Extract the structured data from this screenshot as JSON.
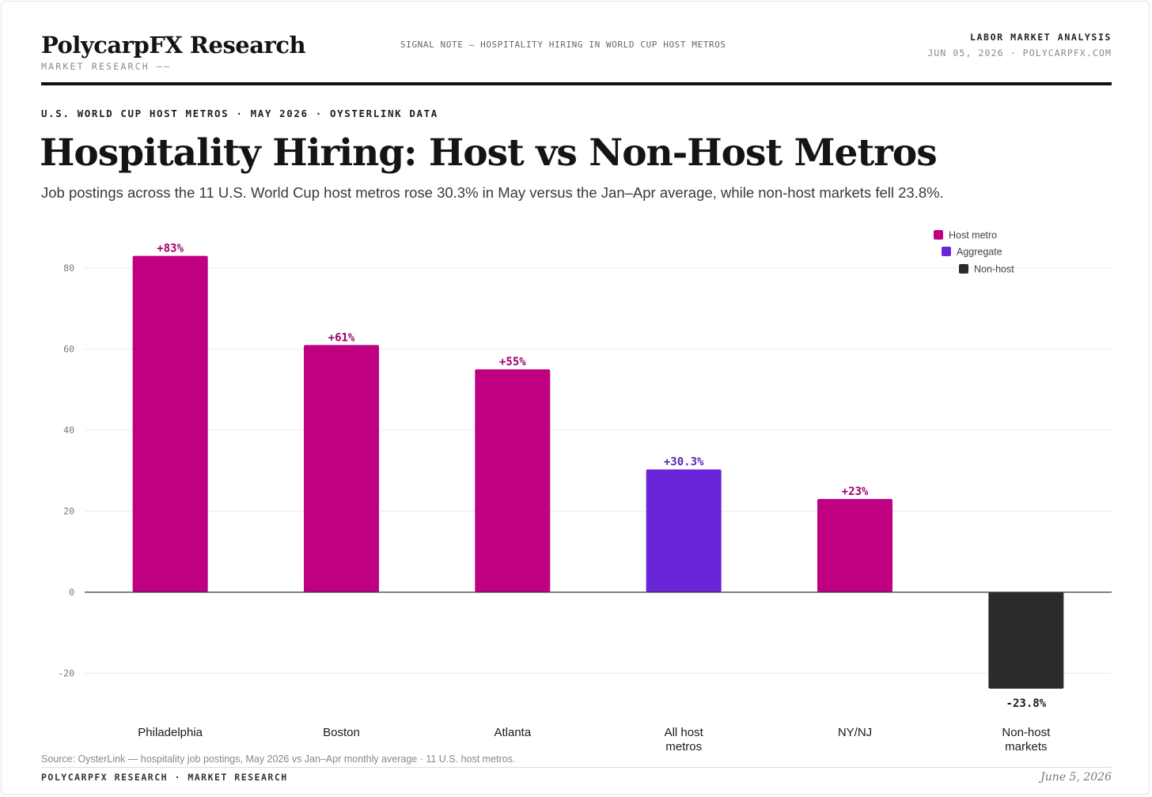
{
  "header": {
    "brand": "PolycarpFX Research",
    "brand_sub": "MARKET RESEARCH ——",
    "signal_note": "SIGNAL NOTE — HOSPITALITY HIRING IN WORLD CUP HOST METROS",
    "section": "LABOR MARKET ANALYSIS",
    "date_site": "JUN 05, 2026 · POLYCARPFX.COM"
  },
  "eyebrow": "U.S. WORLD CUP HOST METROS · MAY 2026 · OYSTERLINK DATA",
  "title": "Hospitality Hiring: Host vs Non-Host Metros",
  "subtitle": "Job postings across the 11 U.S. World Cup host metros rose 30.3% in May versus the Jan–Apr average, while non-host markets fell 23.8%.",
  "colors": {
    "host": "#bf0081",
    "aggregate": "#6a25d8",
    "nonhost": "#2b2b2b",
    "host_label": "#a0006c",
    "aggregate_label": "#5a22b5",
    "nonhost_label": "#1a1a1a"
  },
  "chart_data": {
    "type": "bar",
    "categories": [
      [
        "Philadelphia"
      ],
      [
        "Boston"
      ],
      [
        "Atlanta"
      ],
      [
        "All host",
        "metros"
      ],
      [
        "NY/NJ"
      ],
      [
        "Non-host",
        "markets"
      ]
    ],
    "values": [
      83,
      61,
      55,
      30.3,
      23,
      -23.8
    ],
    "data_labels": [
      "+83%",
      "+61%",
      "+55%",
      "+30.3%",
      "+23%",
      "-23.8%"
    ],
    "groups": [
      "host",
      "host",
      "host",
      "aggregate",
      "host",
      "nonhost"
    ],
    "ylim": [
      -25,
      85
    ],
    "yticks": [
      -20,
      0,
      20,
      40,
      60,
      80
    ],
    "grid": true,
    "legend": [
      {
        "key": "host",
        "label": "Host metro"
      },
      {
        "key": "aggregate",
        "label": "Aggregate"
      },
      {
        "key": "nonhost",
        "label": "Non-host"
      }
    ],
    "legend_position": "top-right"
  },
  "footer": {
    "source": "Source: OysterLink — hospitality job postings, May 2026 vs Jan–Apr monthly average · 11 U.S. host metros.",
    "left": "POLYCARPFX RESEARCH · MARKET RESEARCH",
    "right": "June 5, 2026"
  }
}
